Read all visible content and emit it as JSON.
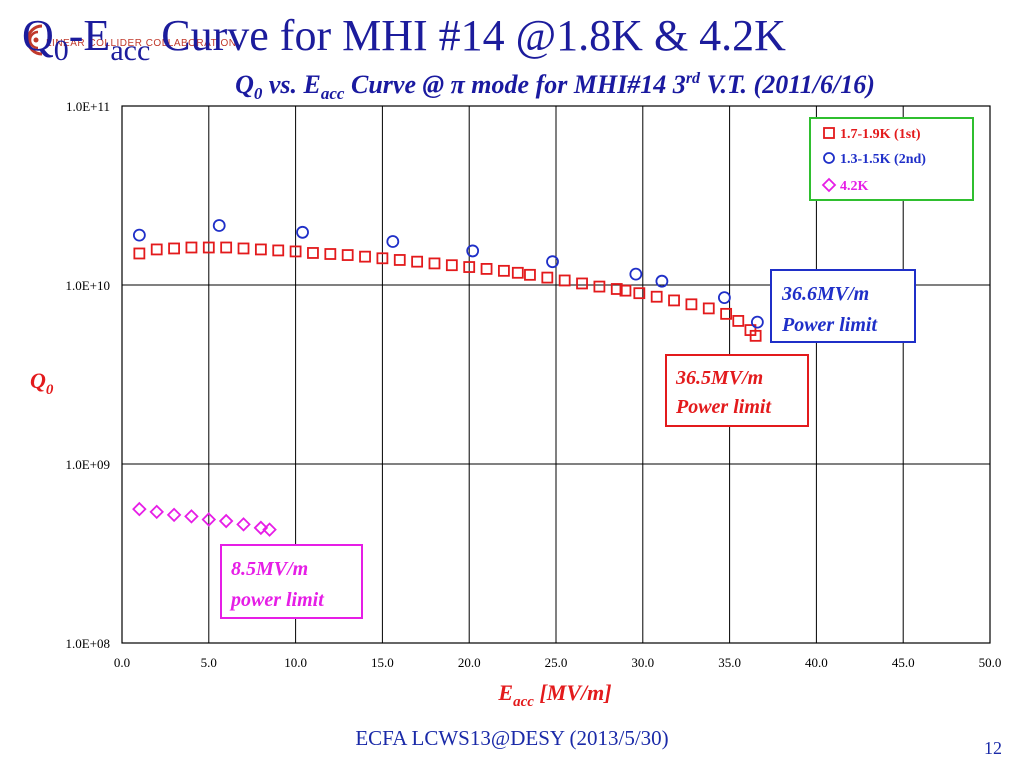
{
  "slide": {
    "title_q": "Q",
    "title_q_sub": "0",
    "title_e": "-E",
    "title_e_sub": "acc",
    "title_rest": " Curve for MHI #14 @1.8K & 4.2K",
    "logo_text": "LINEAR COLLIDER COLLABORATION",
    "footer": "ECFA LCWS13@DESY (2013/5/30)",
    "page_number": "12"
  },
  "colors": {
    "title": "#1c1c9c",
    "series_1st": "#e31a1c",
    "series_2nd": "#1f2fc8",
    "series_42": "#e61ee6",
    "legend_border": "#2fbf2f",
    "chart_title": "#1a1aa0",
    "axis_label": "#e31a1c"
  },
  "chart_data": {
    "type": "scatter",
    "title_prefix": "Q",
    "title_q_sub": "0",
    "title_mid": " vs. E",
    "title_e_sub": "acc",
    "title_after": " Curve @ π mode for MHI#14 3",
    "title_sup": "rd",
    "title_end": " V.T. (2011/6/16)",
    "xlabel": "E",
    "xlabel_sub": "acc",
    "xlabel_unit": " [MV/m]",
    "ylabel": "Q",
    "ylabel_sub": "0",
    "xlim": [
      0,
      50
    ],
    "ylim": [
      100000000.0,
      100000000000.0
    ],
    "y_scale": "log",
    "grid": true,
    "legend_position": "top-right",
    "x_ticks": [
      "0.0",
      "5.0",
      "10.0",
      "15.0",
      "20.0",
      "25.0",
      "30.0",
      "35.0",
      "40.0",
      "45.0",
      "50.0"
    ],
    "y_ticks": [
      {
        "value": 100000000000.0,
        "label": "1.0E+11"
      },
      {
        "value": 10000000000.0,
        "label": "1.0E+10"
      },
      {
        "value": 1000000000.0,
        "label": "1.0E+09"
      },
      {
        "value": 100000000.0,
        "label": "1.0E+08"
      }
    ],
    "series": [
      {
        "name": "1.7-1.9K (1st)",
        "marker": "square",
        "color": "#e31a1c",
        "x": [
          1.0,
          2.0,
          3.0,
          4.0,
          5.0,
          6.0,
          7.0,
          8.0,
          9.0,
          10.0,
          11.0,
          12.0,
          13.0,
          14.0,
          15.0,
          16.0,
          17.0,
          18.0,
          19.0,
          20.0,
          21.0,
          22.0,
          22.8,
          23.5,
          24.5,
          25.5,
          26.5,
          27.5,
          28.5,
          29.0,
          29.8,
          30.8,
          31.8,
          32.8,
          33.8,
          34.8,
          35.5,
          36.2,
          36.5
        ],
        "y": [
          15000000000.0,
          15800000000.0,
          16000000000.0,
          16200000000.0,
          16200000000.0,
          16200000000.0,
          16000000000.0,
          15800000000.0,
          15600000000.0,
          15400000000.0,
          15100000000.0,
          14900000000.0,
          14700000000.0,
          14400000000.0,
          14100000000.0,
          13800000000.0,
          13500000000.0,
          13200000000.0,
          12900000000.0,
          12600000000.0,
          12300000000.0,
          12000000000.0,
          11700000000.0,
          11400000000.0,
          11000000000.0,
          10600000000.0,
          10200000000.0,
          9800000000.0,
          9500000000.0,
          9300000000.0,
          9000000000.0,
          8600000000.0,
          8200000000.0,
          7800000000.0,
          7400000000.0,
          6900000000.0,
          6300000000.0,
          5600000000.0,
          5200000000.0
        ]
      },
      {
        "name": "1.3-1.5K (2nd)",
        "marker": "circle",
        "color": "#1f2fc8",
        "x": [
          1.0,
          5.6,
          10.4,
          15.6,
          20.2,
          24.8,
          29.6,
          31.1,
          34.7,
          36.6
        ],
        "y": [
          19000000000.0,
          21500000000.0,
          19700000000.0,
          17500000000.0,
          15500000000.0,
          13500000000.0,
          11500000000.0,
          10500000000.0,
          8500000000.0,
          6200000000.0
        ]
      },
      {
        "name": "4.2K",
        "marker": "diamond",
        "color": "#e61ee6",
        "x": [
          1.0,
          2.0,
          3.0,
          4.0,
          5.0,
          6.0,
          7.0,
          8.0,
          8.5
        ],
        "y": [
          560000000.0,
          540000000.0,
          520000000.0,
          510000000.0,
          490000000.0,
          480000000.0,
          460000000.0,
          440000000.0,
          430000000.0
        ]
      }
    ],
    "annotations": [
      {
        "line1": "36.6MV/m",
        "line2": "Power limit",
        "color": "#1f2fc8",
        "anchor": "right-upper"
      },
      {
        "line1": "36.5MV/m",
        "line2": "Power limit",
        "color": "#e31a1c",
        "anchor": "right-middle"
      },
      {
        "line1": "8.5MV/m",
        "line2": "power limit",
        "color": "#e61ee6",
        "anchor": "left-lower"
      }
    ]
  }
}
